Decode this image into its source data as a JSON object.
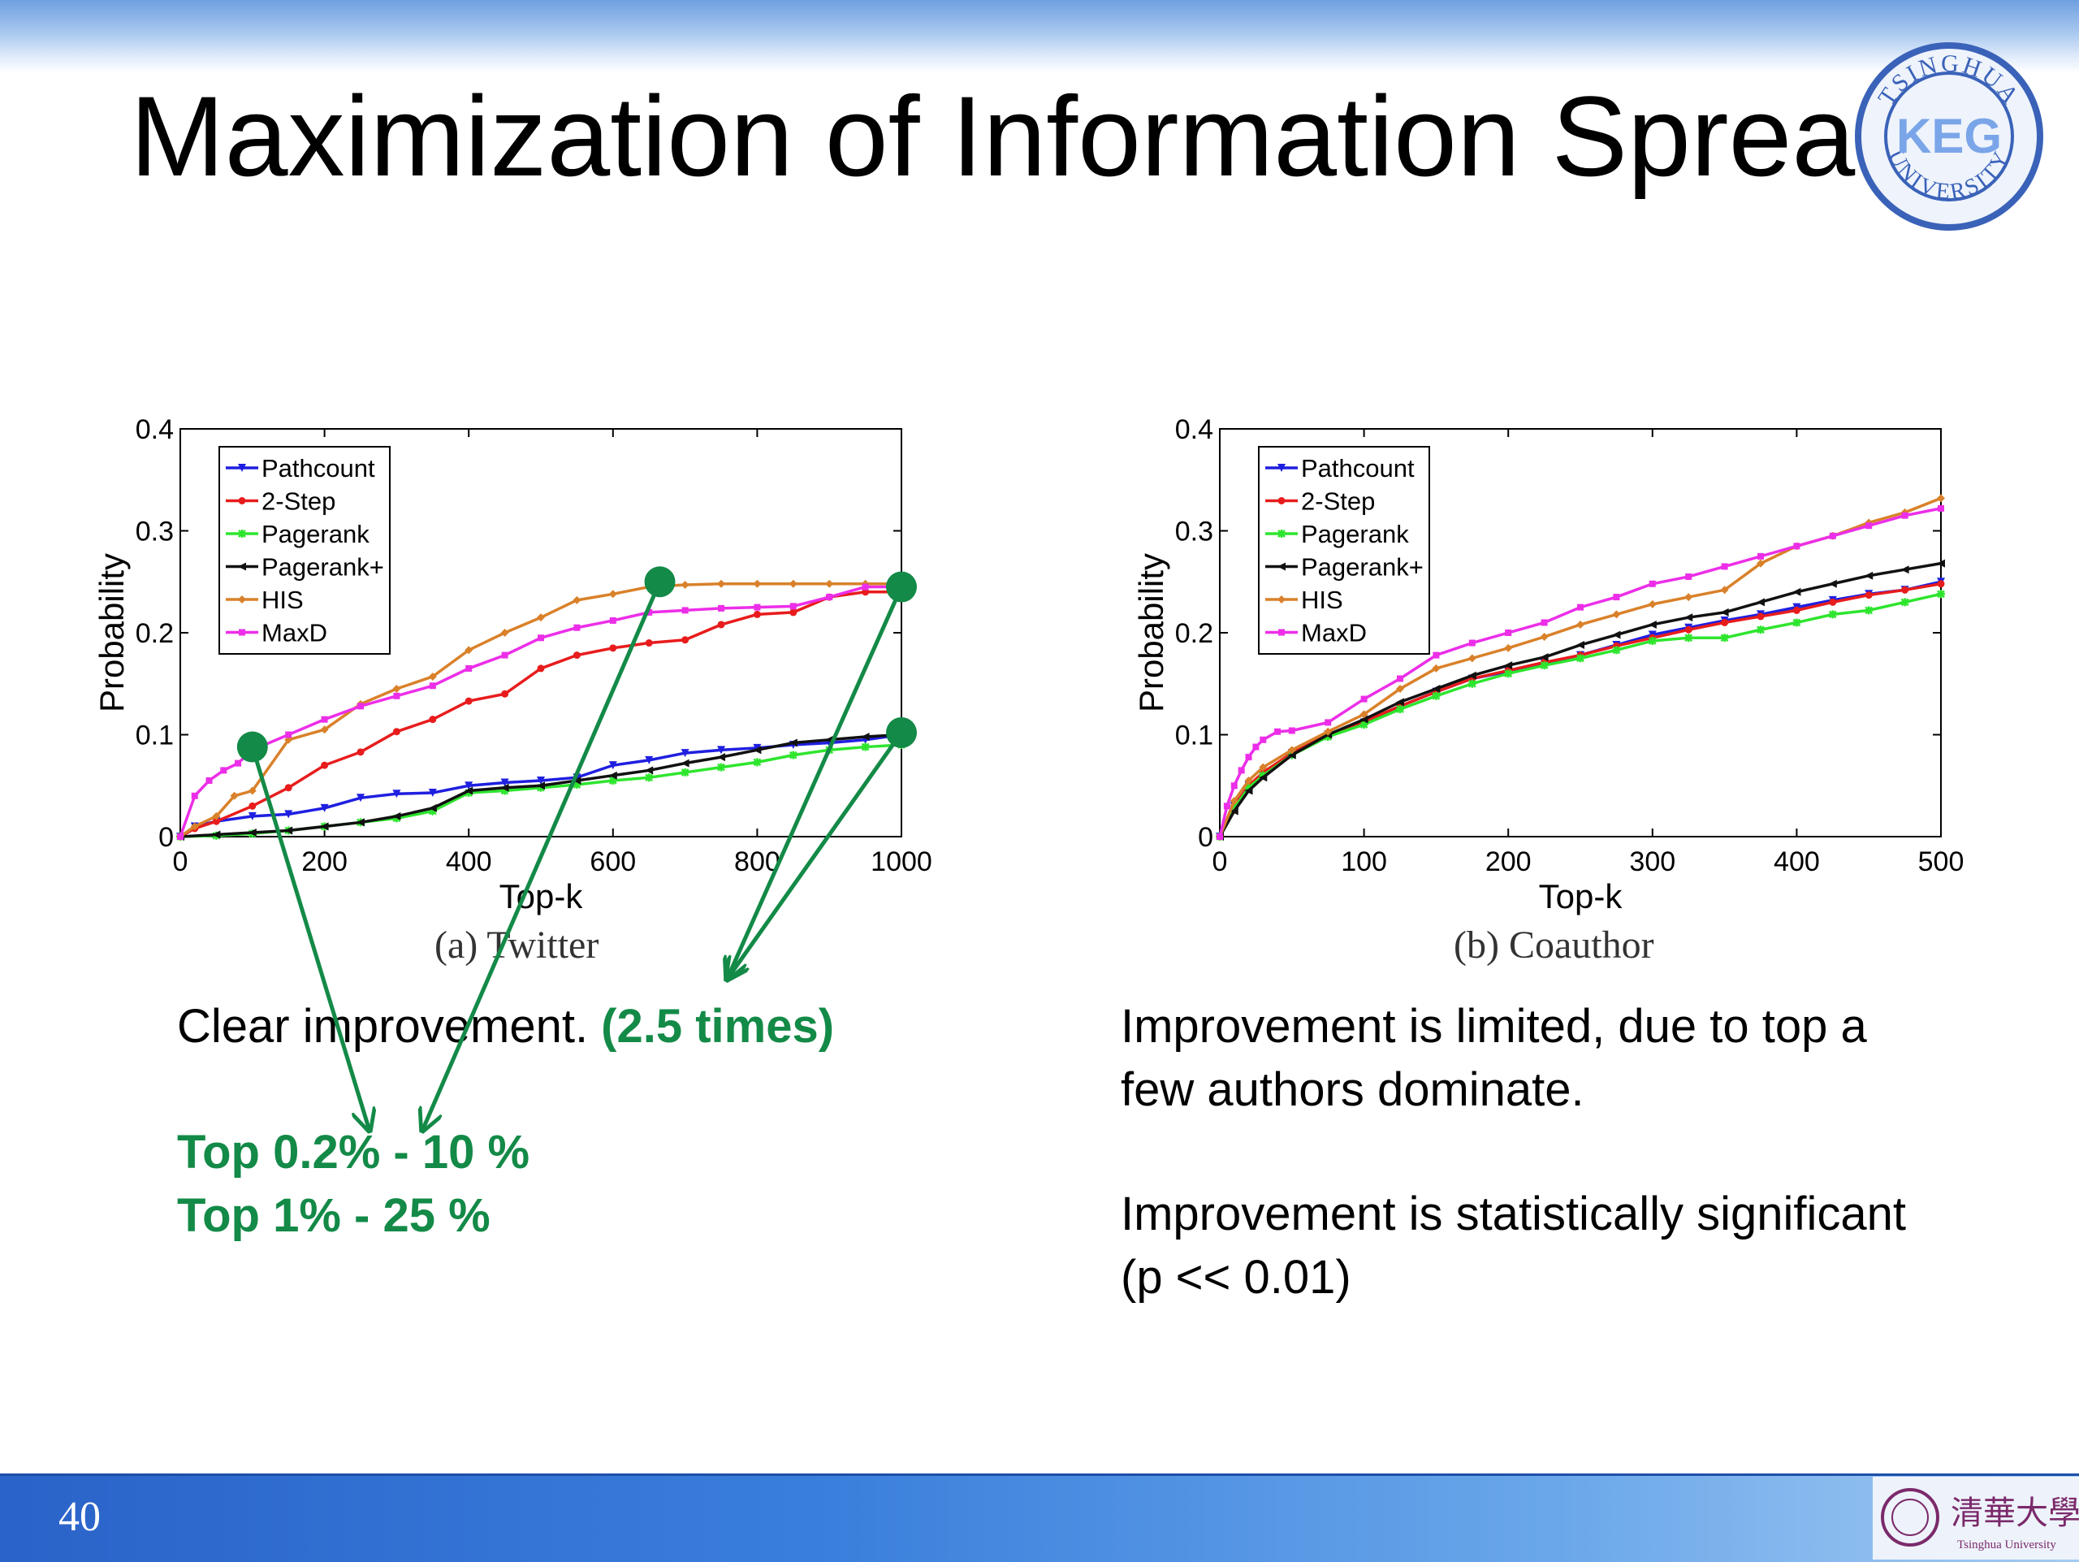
{
  "slide": {
    "title": "Maximization of Information Spread",
    "page_number": "40",
    "seal_text_top": "TSINGHUA",
    "seal_text_bottom": "UNIVERSITY",
    "seal_mark": "KEG",
    "footer_logo_text": "清華大學",
    "footer_logo_sub": "Tsinghua University"
  },
  "colors": {
    "Pathcount": "#1f1fe0",
    "2-Step": "#e81c1c",
    "Pagerank": "#2ee52e",
    "Pagerank+": "#111111",
    "HIS": "#d9812a",
    "MaxD": "#ec2ee8",
    "annotation": "#138a47"
  },
  "chart_data": [
    {
      "type": "line",
      "caption": "(a) Twitter",
      "xlabel": "Top-k",
      "ylabel": "Probability",
      "xlim": [
        0,
        1000
      ],
      "ylim": [
        0,
        0.4
      ],
      "xticks": [
        "0",
        "200",
        "400",
        "600",
        "800",
        "1000"
      ],
      "yticks": [
        "0",
        "0.1",
        "0.2",
        "0.3",
        "0.4"
      ],
      "legend_position": "top-left",
      "series": [
        {
          "name": "Pathcount",
          "x": [
            0,
            20,
            50,
            100,
            150,
            200,
            250,
            300,
            350,
            400,
            450,
            500,
            550,
            600,
            650,
            700,
            750,
            800,
            850,
            900,
            950,
            1000
          ],
          "y": [
            0,
            0.01,
            0.015,
            0.02,
            0.022,
            0.028,
            0.038,
            0.042,
            0.043,
            0.05,
            0.053,
            0.055,
            0.058,
            0.07,
            0.075,
            0.082,
            0.085,
            0.087,
            0.09,
            0.092,
            0.095,
            0.1
          ]
        },
        {
          "name": "2-Step",
          "x": [
            0,
            20,
            50,
            100,
            150,
            200,
            250,
            300,
            350,
            400,
            450,
            500,
            550,
            600,
            650,
            700,
            750,
            800,
            850,
            900,
            950,
            1000
          ],
          "y": [
            0,
            0.008,
            0.015,
            0.03,
            0.048,
            0.07,
            0.083,
            0.103,
            0.115,
            0.133,
            0.14,
            0.165,
            0.178,
            0.185,
            0.19,
            0.193,
            0.208,
            0.218,
            0.22,
            0.235,
            0.24,
            0.24
          ]
        },
        {
          "name": "Pagerank",
          "x": [
            0,
            50,
            100,
            150,
            200,
            250,
            300,
            350,
            400,
            450,
            500,
            550,
            600,
            650,
            700,
            750,
            800,
            850,
            900,
            950,
            1000
          ],
          "y": [
            0,
            0.001,
            0.003,
            0.006,
            0.01,
            0.014,
            0.018,
            0.025,
            0.043,
            0.045,
            0.048,
            0.051,
            0.055,
            0.058,
            0.063,
            0.068,
            0.073,
            0.08,
            0.085,
            0.088,
            0.09
          ]
        },
        {
          "name": "Pagerank+",
          "x": [
            0,
            50,
            100,
            150,
            200,
            250,
            300,
            350,
            400,
            450,
            500,
            550,
            600,
            650,
            700,
            750,
            800,
            850,
            900,
            950,
            1000
          ],
          "y": [
            0,
            0.002,
            0.004,
            0.006,
            0.01,
            0.014,
            0.02,
            0.028,
            0.045,
            0.048,
            0.05,
            0.055,
            0.06,
            0.065,
            0.072,
            0.078,
            0.085,
            0.092,
            0.095,
            0.098,
            0.1
          ]
        },
        {
          "name": "HIS",
          "x": [
            0,
            20,
            50,
            75,
            100,
            150,
            200,
            250,
            300,
            350,
            400,
            450,
            500,
            550,
            600,
            650,
            700,
            750,
            800,
            850,
            900,
            950,
            1000
          ],
          "y": [
            0,
            0.01,
            0.02,
            0.04,
            0.045,
            0.095,
            0.105,
            0.13,
            0.145,
            0.157,
            0.183,
            0.2,
            0.215,
            0.232,
            0.238,
            0.245,
            0.247,
            0.248,
            0.248,
            0.248,
            0.248,
            0.248,
            0.248
          ]
        },
        {
          "name": "MaxD",
          "x": [
            0,
            20,
            40,
            60,
            80,
            100,
            150,
            200,
            250,
            300,
            350,
            400,
            450,
            500,
            550,
            600,
            650,
            700,
            750,
            800,
            850,
            900,
            950,
            1000
          ],
          "y": [
            0,
            0.04,
            0.055,
            0.065,
            0.072,
            0.085,
            0.1,
            0.115,
            0.128,
            0.138,
            0.148,
            0.165,
            0.178,
            0.195,
            0.205,
            0.212,
            0.22,
            0.222,
            0.224,
            0.225,
            0.226,
            0.235,
            0.245,
            0.245
          ]
        }
      ]
    },
    {
      "type": "line",
      "caption": "(b) Coauthor",
      "xlabel": "Top-k",
      "ylabel": "Probability",
      "xlim": [
        0,
        500
      ],
      "ylim": [
        0,
        0.4
      ],
      "xticks": [
        "0",
        "100",
        "200",
        "300",
        "400",
        "500"
      ],
      "yticks": [
        "0",
        "0.1",
        "0.2",
        "0.3",
        "0.4"
      ],
      "legend_position": "top-left",
      "series": [
        {
          "name": "Pathcount",
          "x": [
            0,
            10,
            20,
            30,
            50,
            75,
            100,
            125,
            150,
            175,
            200,
            225,
            250,
            275,
            300,
            325,
            350,
            375,
            400,
            425,
            450,
            475,
            500
          ],
          "y": [
            0,
            0.03,
            0.05,
            0.062,
            0.082,
            0.1,
            0.112,
            0.128,
            0.142,
            0.155,
            0.162,
            0.17,
            0.178,
            0.188,
            0.198,
            0.205,
            0.212,
            0.218,
            0.225,
            0.232,
            0.238,
            0.242,
            0.25
          ]
        },
        {
          "name": "2-Step",
          "x": [
            0,
            10,
            20,
            30,
            50,
            75,
            100,
            125,
            150,
            175,
            200,
            225,
            250,
            275,
            300,
            325,
            350,
            375,
            400,
            425,
            450,
            475,
            500
          ],
          "y": [
            0,
            0.03,
            0.05,
            0.063,
            0.082,
            0.1,
            0.113,
            0.128,
            0.142,
            0.155,
            0.163,
            0.171,
            0.178,
            0.187,
            0.195,
            0.203,
            0.21,
            0.216,
            0.222,
            0.23,
            0.237,
            0.242,
            0.248
          ]
        },
        {
          "name": "Pagerank",
          "x": [
            0,
            10,
            20,
            30,
            50,
            75,
            100,
            125,
            150,
            175,
            200,
            225,
            250,
            275,
            300,
            325,
            350,
            375,
            400,
            425,
            450,
            475,
            500
          ],
          "y": [
            0,
            0.028,
            0.048,
            0.06,
            0.08,
            0.098,
            0.11,
            0.125,
            0.138,
            0.15,
            0.16,
            0.168,
            0.175,
            0.183,
            0.192,
            0.195,
            0.195,
            0.203,
            0.21,
            0.218,
            0.222,
            0.23,
            0.238
          ]
        },
        {
          "name": "Pagerank+",
          "x": [
            0,
            10,
            20,
            30,
            50,
            75,
            100,
            125,
            150,
            175,
            200,
            225,
            250,
            275,
            300,
            325,
            350,
            375,
            400,
            425,
            450,
            475,
            500
          ],
          "y": [
            0,
            0.025,
            0.045,
            0.058,
            0.08,
            0.1,
            0.115,
            0.132,
            0.145,
            0.158,
            0.168,
            0.176,
            0.188,
            0.198,
            0.208,
            0.215,
            0.22,
            0.23,
            0.24,
            0.248,
            0.256,
            0.262,
            0.268
          ]
        },
        {
          "name": "HIS",
          "x": [
            0,
            10,
            20,
            30,
            50,
            75,
            100,
            125,
            150,
            175,
            200,
            225,
            250,
            275,
            300,
            325,
            350,
            375,
            400,
            425,
            450,
            475,
            500
          ],
          "y": [
            0,
            0.035,
            0.055,
            0.068,
            0.085,
            0.103,
            0.12,
            0.145,
            0.165,
            0.175,
            0.185,
            0.196,
            0.208,
            0.218,
            0.228,
            0.235,
            0.242,
            0.268,
            0.285,
            0.295,
            0.308,
            0.318,
            0.332
          ]
        },
        {
          "name": "MaxD",
          "x": [
            0,
            5,
            10,
            15,
            20,
            25,
            30,
            40,
            50,
            75,
            100,
            125,
            150,
            175,
            200,
            225,
            250,
            275,
            300,
            325,
            350,
            375,
            400,
            425,
            450,
            475,
            500
          ],
          "y": [
            0,
            0.03,
            0.05,
            0.065,
            0.078,
            0.088,
            0.095,
            0.103,
            0.104,
            0.112,
            0.135,
            0.155,
            0.178,
            0.19,
            0.2,
            0.21,
            0.225,
            0.235,
            0.248,
            0.255,
            0.265,
            0.275,
            0.285,
            0.295,
            0.305,
            0.315,
            0.322
          ]
        }
      ]
    }
  ],
  "annotation_points": [
    {
      "chart": 0,
      "x": 100,
      "y": 0.088
    },
    {
      "chart": 0,
      "x": 665,
      "y": 0.25
    },
    {
      "chart": 0,
      "x": 1000,
      "y": 0.245
    },
    {
      "chart": 0,
      "x": 1000,
      "y": 0.102
    }
  ],
  "text": {
    "left_note_plain": "Clear improvement. ",
    "left_note_bold": "(2.5 times)",
    "top_02": "Top 0.2%  - 10 %",
    "top_1": "Top 1%  - 25 %",
    "right_line_1": "Improvement is limited, due to top a",
    "right_line_2": "few authors dominate.",
    "right_line_3": "Improvement is statistically significant",
    "right_line_4": "(p << 0.01)"
  }
}
